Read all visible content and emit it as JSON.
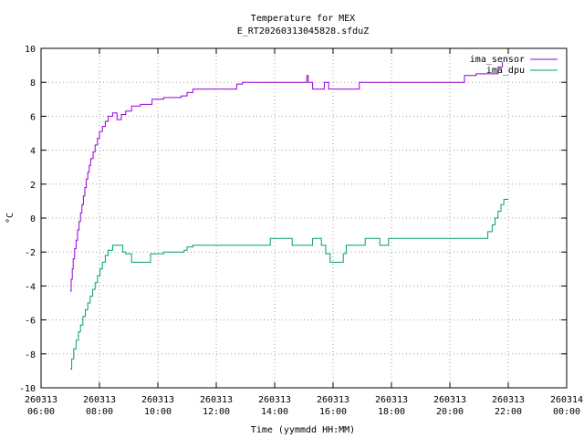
{
  "chart_data": {
    "type": "line",
    "title_line1": "Temperature for MEX",
    "title_line2": "E_RT20260313045828.sfduZ",
    "xlabel": "Time (yymmdd HH:MM)",
    "ylabel": "°C",
    "xlim": [
      "260313 06:00",
      "260314 00:00"
    ],
    "ylim": [
      -10,
      10
    ],
    "grid": true,
    "legend_position": "top-right",
    "x_ticks": [
      {
        "value": 6,
        "date": "260313",
        "time": "06:00"
      },
      {
        "value": 8,
        "date": "260313",
        "time": "08:00"
      },
      {
        "value": 10,
        "date": "260313",
        "time": "10:00"
      },
      {
        "value": 12,
        "date": "260313",
        "time": "12:00"
      },
      {
        "value": 14,
        "date": "260313",
        "time": "14:00"
      },
      {
        "value": 16,
        "date": "260313",
        "time": "16:00"
      },
      {
        "value": 18,
        "date": "260313",
        "time": "18:00"
      },
      {
        "value": 20,
        "date": "260313",
        "time": "20:00"
      },
      {
        "value": 22,
        "date": "260313",
        "time": "22:00"
      },
      {
        "value": 24,
        "date": "260314",
        "time": "00:00"
      }
    ],
    "y_ticks": [
      -10,
      -8,
      -6,
      -4,
      -2,
      0,
      2,
      4,
      6,
      8,
      10
    ],
    "series": [
      {
        "name": "ima_sensor",
        "color": "#9400d3",
        "points": [
          [
            7.0,
            -4.3
          ],
          [
            7.03,
            -3.6
          ],
          [
            7.07,
            -3.0
          ],
          [
            7.1,
            -2.4
          ],
          [
            7.15,
            -1.8
          ],
          [
            7.2,
            -1.3
          ],
          [
            7.25,
            -0.7
          ],
          [
            7.3,
            -0.2
          ],
          [
            7.35,
            0.3
          ],
          [
            7.4,
            0.8
          ],
          [
            7.45,
            1.3
          ],
          [
            7.5,
            1.8
          ],
          [
            7.55,
            2.3
          ],
          [
            7.6,
            2.7
          ],
          [
            7.65,
            3.1
          ],
          [
            7.7,
            3.5
          ],
          [
            7.78,
            3.9
          ],
          [
            7.85,
            4.3
          ],
          [
            7.93,
            4.7
          ],
          [
            8.0,
            5.1
          ],
          [
            8.1,
            5.4
          ],
          [
            8.2,
            5.7
          ],
          [
            8.3,
            6.0
          ],
          [
            8.45,
            6.2
          ],
          [
            8.6,
            6.2
          ],
          [
            8.6,
            5.8
          ],
          [
            8.75,
            6.1
          ],
          [
            8.9,
            6.3
          ],
          [
            9.1,
            6.6
          ],
          [
            9.4,
            6.7
          ],
          [
            9.7,
            6.7
          ],
          [
            9.8,
            7.0
          ],
          [
            10.2,
            7.1
          ],
          [
            10.8,
            7.2
          ],
          [
            11.0,
            7.4
          ],
          [
            11.2,
            7.6
          ],
          [
            12.0,
            7.6
          ],
          [
            12.6,
            7.6
          ],
          [
            12.7,
            7.9
          ],
          [
            12.9,
            8.0
          ],
          [
            13.5,
            8.0
          ],
          [
            14.0,
            8.0
          ],
          [
            14.8,
            8.0
          ],
          [
            15.1,
            8.0
          ],
          [
            15.1,
            8.4
          ],
          [
            15.15,
            8.0
          ],
          [
            15.3,
            7.6
          ],
          [
            15.6,
            7.6
          ],
          [
            15.7,
            8.0
          ],
          [
            15.85,
            7.6
          ],
          [
            16.5,
            7.6
          ],
          [
            16.8,
            7.6
          ],
          [
            16.9,
            8.0
          ],
          [
            17.5,
            8.0
          ],
          [
            18.0,
            8.0
          ],
          [
            19.0,
            8.0
          ],
          [
            20.0,
            8.0
          ],
          [
            20.4,
            8.0
          ],
          [
            20.5,
            8.4
          ],
          [
            20.9,
            8.5
          ],
          [
            21.4,
            8.5
          ],
          [
            21.6,
            8.5
          ],
          [
            21.65,
            8.9
          ],
          [
            21.8,
            9.2
          ]
        ]
      },
      {
        "name": "ima_dpu",
        "color": "#009e73",
        "points": [
          [
            7.0,
            -8.9
          ],
          [
            7.05,
            -8.3
          ],
          [
            7.12,
            -7.7
          ],
          [
            7.2,
            -7.2
          ],
          [
            7.28,
            -6.7
          ],
          [
            7.35,
            -6.3
          ],
          [
            7.43,
            -5.8
          ],
          [
            7.52,
            -5.4
          ],
          [
            7.6,
            -5.0
          ],
          [
            7.68,
            -4.6
          ],
          [
            7.77,
            -4.2
          ],
          [
            7.85,
            -3.8
          ],
          [
            7.93,
            -3.4
          ],
          [
            8.02,
            -3.0
          ],
          [
            8.1,
            -2.6
          ],
          [
            8.2,
            -2.2
          ],
          [
            8.3,
            -1.9
          ],
          [
            8.45,
            -1.6
          ],
          [
            8.75,
            -1.6
          ],
          [
            8.8,
            -2.0
          ],
          [
            8.9,
            -2.1
          ],
          [
            9.0,
            -2.1
          ],
          [
            9.1,
            -2.6
          ],
          [
            9.7,
            -2.6
          ],
          [
            9.75,
            -2.1
          ],
          [
            10.2,
            -2.0
          ],
          [
            10.8,
            -2.0
          ],
          [
            10.9,
            -1.9
          ],
          [
            11.0,
            -1.7
          ],
          [
            11.2,
            -1.6
          ],
          [
            12.0,
            -1.6
          ],
          [
            13.0,
            -1.6
          ],
          [
            13.8,
            -1.6
          ],
          [
            13.85,
            -1.2
          ],
          [
            14.5,
            -1.2
          ],
          [
            14.6,
            -1.6
          ],
          [
            15.2,
            -1.6
          ],
          [
            15.3,
            -1.2
          ],
          [
            15.5,
            -1.2
          ],
          [
            15.6,
            -1.6
          ],
          [
            15.75,
            -2.1
          ],
          [
            15.85,
            -2.1
          ],
          [
            15.9,
            -2.6
          ],
          [
            16.3,
            -2.6
          ],
          [
            16.35,
            -2.1
          ],
          [
            16.45,
            -1.6
          ],
          [
            17.0,
            -1.6
          ],
          [
            17.1,
            -1.2
          ],
          [
            17.5,
            -1.2
          ],
          [
            17.6,
            -1.6
          ],
          [
            17.8,
            -1.6
          ],
          [
            17.9,
            -1.2
          ],
          [
            18.5,
            -1.2
          ],
          [
            19.5,
            -1.2
          ],
          [
            20.5,
            -1.2
          ],
          [
            21.2,
            -1.2
          ],
          [
            21.3,
            -0.8
          ],
          [
            21.45,
            -0.4
          ],
          [
            21.55,
            0.0
          ],
          [
            21.65,
            0.4
          ],
          [
            21.75,
            0.8
          ],
          [
            21.85,
            1.1
          ],
          [
            22.0,
            1.1
          ]
        ]
      }
    ]
  }
}
